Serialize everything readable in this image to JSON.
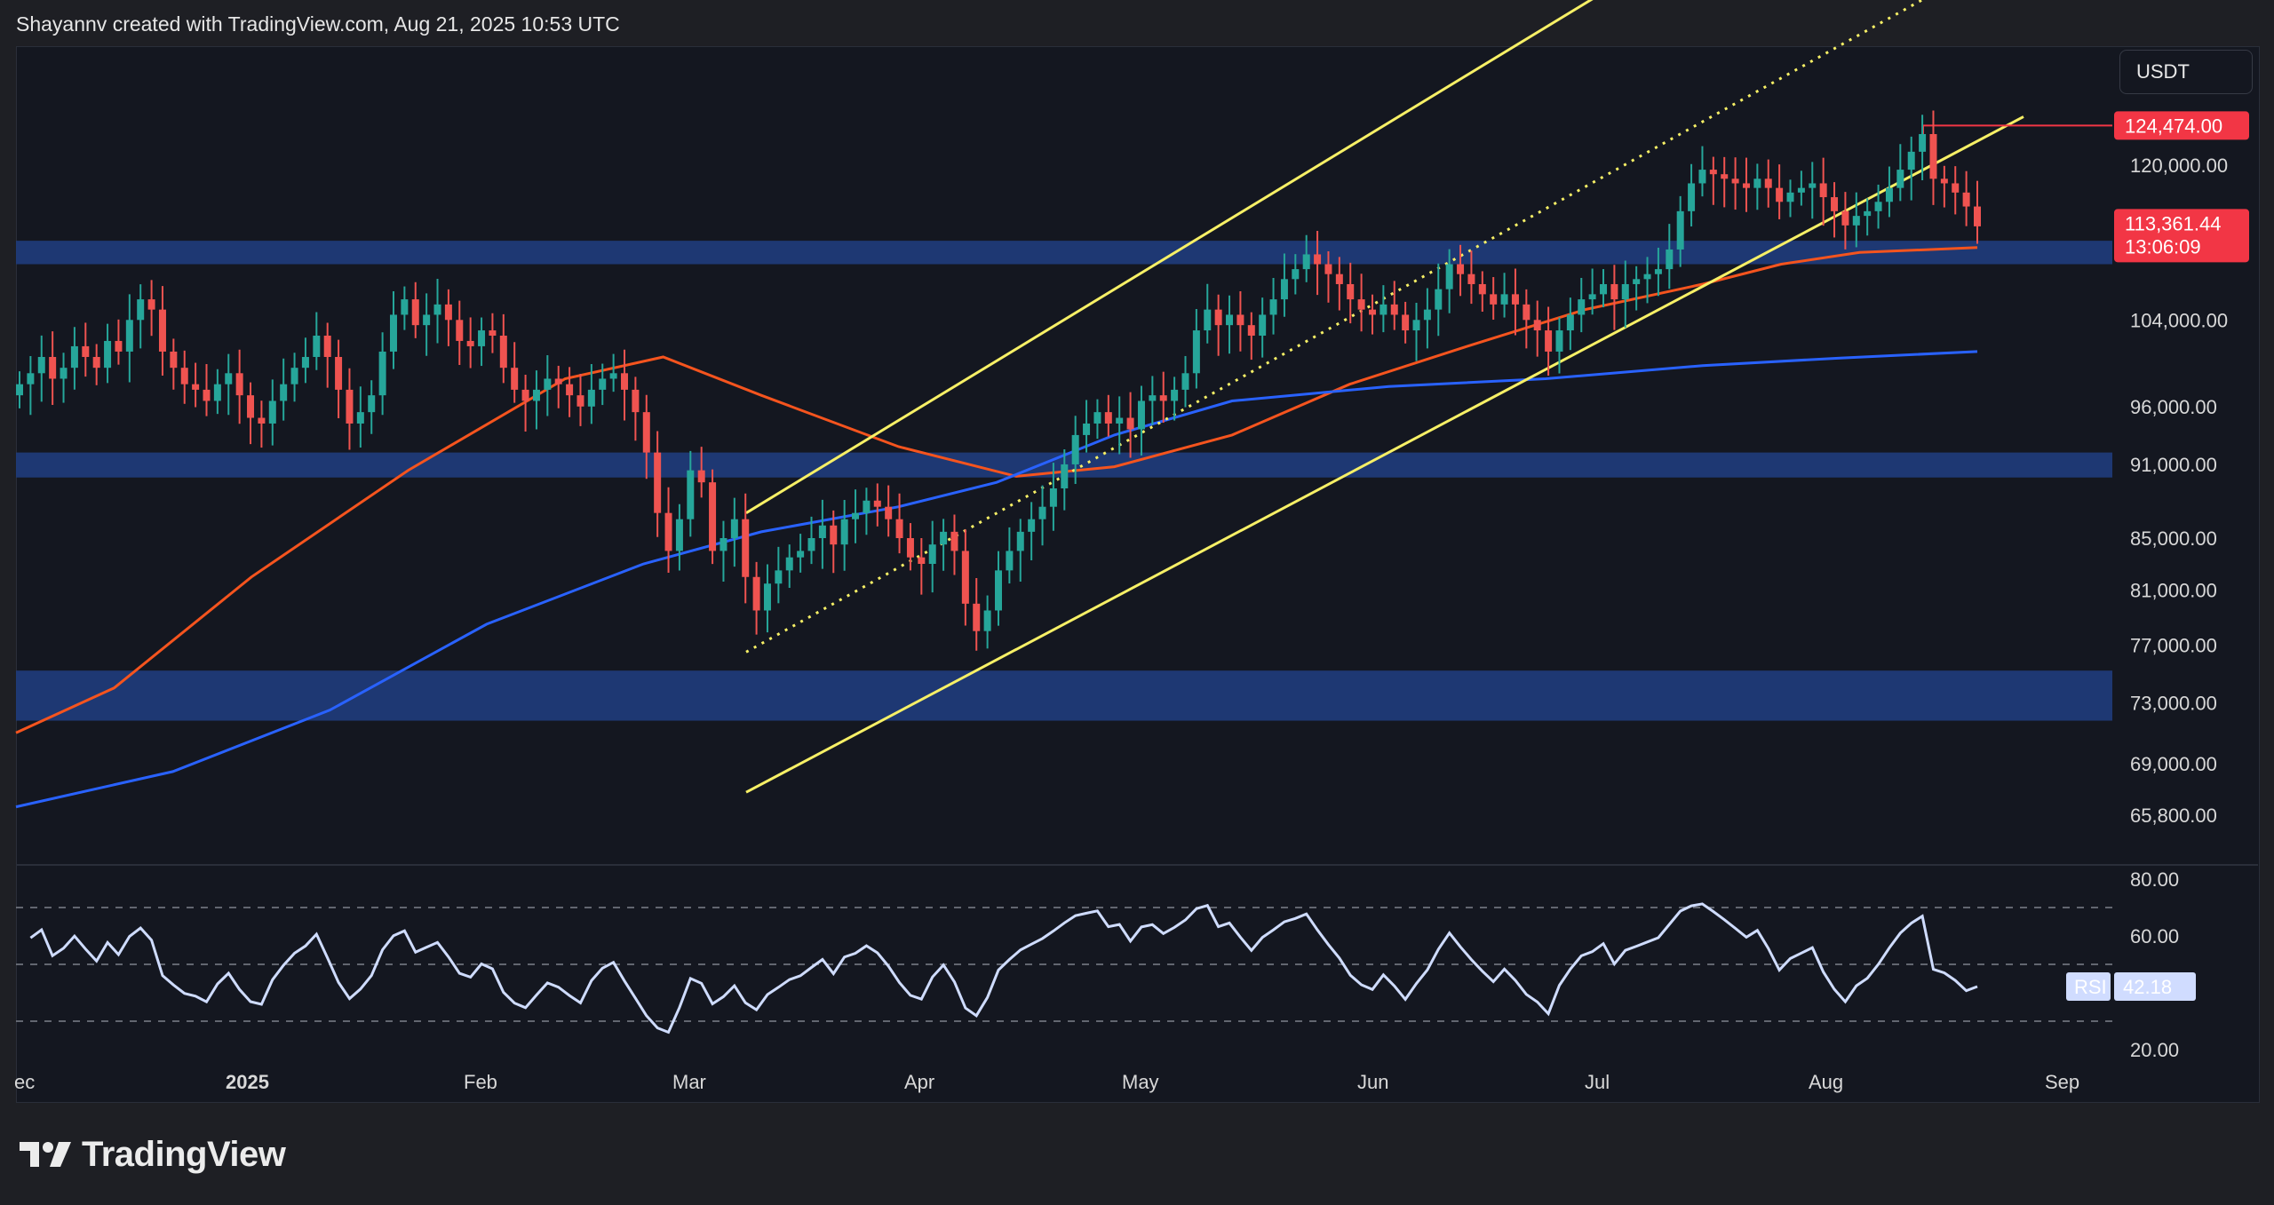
{
  "header": {
    "caption": "Shayannv created with TradingView.com, Aug 21, 2025 10:53 UTC"
  },
  "currency_selector": {
    "label": "USDT"
  },
  "footer": {
    "brand": "TradingView"
  },
  "price_badges": {
    "high": "124,474.00",
    "last": "113,361.44",
    "countdown": "13:06:09"
  },
  "rsi_badge": {
    "label": "RSI",
    "value": "42.18"
  },
  "colors": {
    "background": "#141720",
    "candle_up": "#26a69a",
    "candle_down": "#ef5350",
    "ema_orange": "#f5541e",
    "ma_blue": "#2962ff",
    "channel_yellow": "#f7f066",
    "support_zone": "#1f3a78",
    "rsi_line": "#cfdcff",
    "badge_red": "#f23645"
  },
  "chart_data": [
    {
      "type": "candlestick",
      "title": "",
      "price_axis_ticks": [
        "124,474.00",
        "120,000.00",
        "113,361.44",
        "104,000.00",
        "96,000.00",
        "91,000.00",
        "85,000.00",
        "81,000.00",
        "77,000.00",
        "73,000.00",
        "69,000.00",
        "65,800.00"
      ],
      "price_axis_values": [
        120000,
        104000,
        96000,
        91000,
        85000,
        81000,
        77000,
        73000,
        69000,
        65800
      ],
      "price_axis_labels": [
        "120,000.00",
        "104,000.00",
        "96,000.00",
        "91,000.00",
        "85,000.00",
        "81,000.00",
        "77,000.00",
        "73,000.00",
        "69,000.00",
        "65,800.00"
      ],
      "time_axis_labels": [
        "ec",
        "2025",
        "Feb",
        "Mar",
        "Apr",
        "May",
        "Jun",
        "Jul",
        "Aug",
        "Sep"
      ],
      "ylim": [
        63500,
        140000
      ],
      "scale": "log",
      "last_price": 113361.44,
      "high_price": 124474.0,
      "closes_approx": [
        98000,
        99000,
        100500,
        98500,
        99500,
        101500,
        100500,
        99500,
        102000,
        101000,
        104000,
        106000,
        105000,
        101000,
        99500,
        98000,
        97500,
        96500,
        98000,
        99000,
        97000,
        95000,
        94500,
        96500,
        98000,
        99500,
        100500,
        102500,
        100500,
        97500,
        94500,
        95500,
        97000,
        101000,
        104500,
        106000,
        103500,
        104500,
        105500,
        104000,
        102000,
        101500,
        103000,
        102500,
        99500,
        97500,
        96500,
        97500,
        98500,
        98000,
        97000,
        96000,
        97500,
        98500,
        99000,
        97500,
        95500,
        92000,
        87000,
        84000,
        86500,
        90500,
        89500,
        84000,
        85000,
        86500,
        82000,
        79500,
        81500,
        82500,
        83500,
        84000,
        85000,
        86000,
        84500,
        86500,
        87000,
        88000,
        87500,
        86500,
        85000,
        83500,
        83000,
        84500,
        85500,
        84000,
        80000,
        78000,
        79500,
        82500,
        84000,
        85500,
        86500,
        87500,
        89000,
        91000,
        93500,
        94500,
        95500,
        94500,
        95000,
        94000,
        96500,
        97000,
        96500,
        97500,
        99000,
        103000,
        105000,
        103500,
        104500,
        103500,
        102500,
        104500,
        106000,
        108000,
        109000,
        110500,
        109500,
        108500,
        107500,
        106000,
        105000,
        104500,
        105500,
        104500,
        103000,
        104000,
        105000,
        107000,
        109500,
        108500,
        107500,
        106500,
        105500,
        106500,
        105500,
        104000,
        103000,
        101000,
        103000,
        104500,
        106000,
        106500,
        107500,
        106000,
        107500,
        108000,
        108500,
        109000,
        111000,
        115000,
        118000,
        119500,
        119000,
        118500,
        118000,
        117500,
        118500,
        117500,
        116000,
        117000,
        117500,
        118000,
        116500,
        115000,
        113500,
        114500,
        115000,
        116000,
        117500,
        119500,
        121500,
        123500,
        118500,
        118000,
        117000,
        115500,
        113400
      ],
      "moving_averages": [
        {
          "name": "",
          "color": "#f5541e",
          "approx_values_start_end": [
            71000,
            111200
          ]
        },
        {
          "name": "",
          "color": "#2962ff",
          "approx_values_start_end": [
            66300,
            101000
          ]
        }
      ],
      "support_zones": [
        {
          "from": 109500,
          "to": 111900
        },
        {
          "from": 89900,
          "to": 92000
        },
        {
          "from": 71800,
          "to": 75200
        }
      ],
      "resistance_marker": 124474.0
    },
    {
      "type": "line",
      "title": "",
      "series": [
        {
          "name": "RSI",
          "last": 42.18
        }
      ],
      "ylim": [
        20,
        80
      ],
      "y_ticks": [
        "80.00",
        "60.00",
        "20.00"
      ],
      "bands": [
        30,
        50,
        70
      ]
    }
  ]
}
